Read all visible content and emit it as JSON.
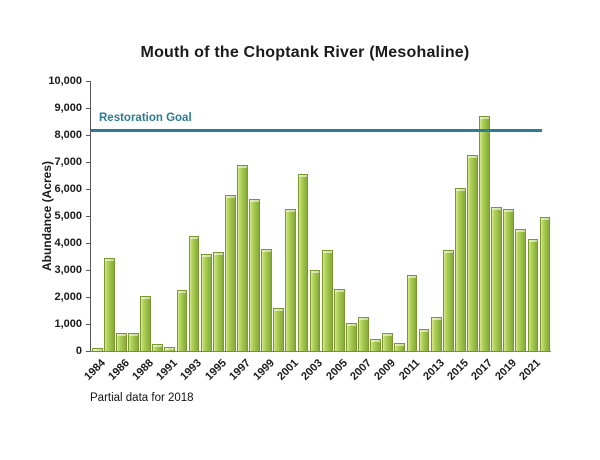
{
  "chart_data": {
    "type": "bar",
    "title": "Mouth of the Choptank River (Mesohaline)",
    "xlabel": "",
    "ylabel": "Abundance (Acres)",
    "ylim": [
      0,
      10000
    ],
    "ytick_interval": 1000,
    "ytick_labels_top_down": [
      "10,000",
      "9,000",
      "8,000",
      "7,000",
      "6,000",
      "5,000",
      "4,000",
      "3,000",
      "2,000",
      "1,000",
      "0"
    ],
    "grid": false,
    "legend": "none",
    "categories": [
      1984,
      1985,
      1986,
      1987,
      1988,
      1989,
      1991,
      1992,
      1993,
      1994,
      1995,
      1996,
      1997,
      1998,
      1999,
      2000,
      2001,
      2002,
      2003,
      2004,
      2005,
      2006,
      2007,
      2008,
      2009,
      2010,
      2011,
      2012,
      2013,
      2014,
      2015,
      2016,
      2017,
      2018,
      2019,
      2020,
      2021,
      2022
    ],
    "values": [
      100,
      3450,
      650,
      650,
      2050,
      250,
      160,
      2250,
      4270,
      3600,
      3650,
      5770,
      6890,
      5620,
      3760,
      1600,
      5250,
      6570,
      3000,
      3740,
      2290,
      1050,
      1260,
      450,
      650,
      300,
      2820,
      800,
      1250,
      3750,
      6050,
      7270,
      8700,
      5330,
      5250,
      4500,
      4150,
      4970
    ],
    "x_tick_labels_shown": [
      "1984",
      "1986",
      "1988",
      "1991",
      "1993",
      "1995",
      "1997",
      "1999",
      "2001",
      "2003",
      "2005",
      "2007",
      "2009",
      "2011",
      "2013",
      "2015",
      "2017",
      "2019",
      "2021"
    ],
    "goal_line": {
      "label": "Restoration Goal",
      "value": 8200,
      "color": "#2e7b96"
    },
    "note": "Partial data for 2018",
    "colors": {
      "bar_fill": "#a2c64e",
      "bar_highlight": "#d8eb8d",
      "bar_shade": "#86aa39",
      "bar_border": "#79982f",
      "goal_line": "#2e7b96",
      "axis": "#595959",
      "text": "#1a1a1a",
      "background": "#ffffff"
    }
  }
}
